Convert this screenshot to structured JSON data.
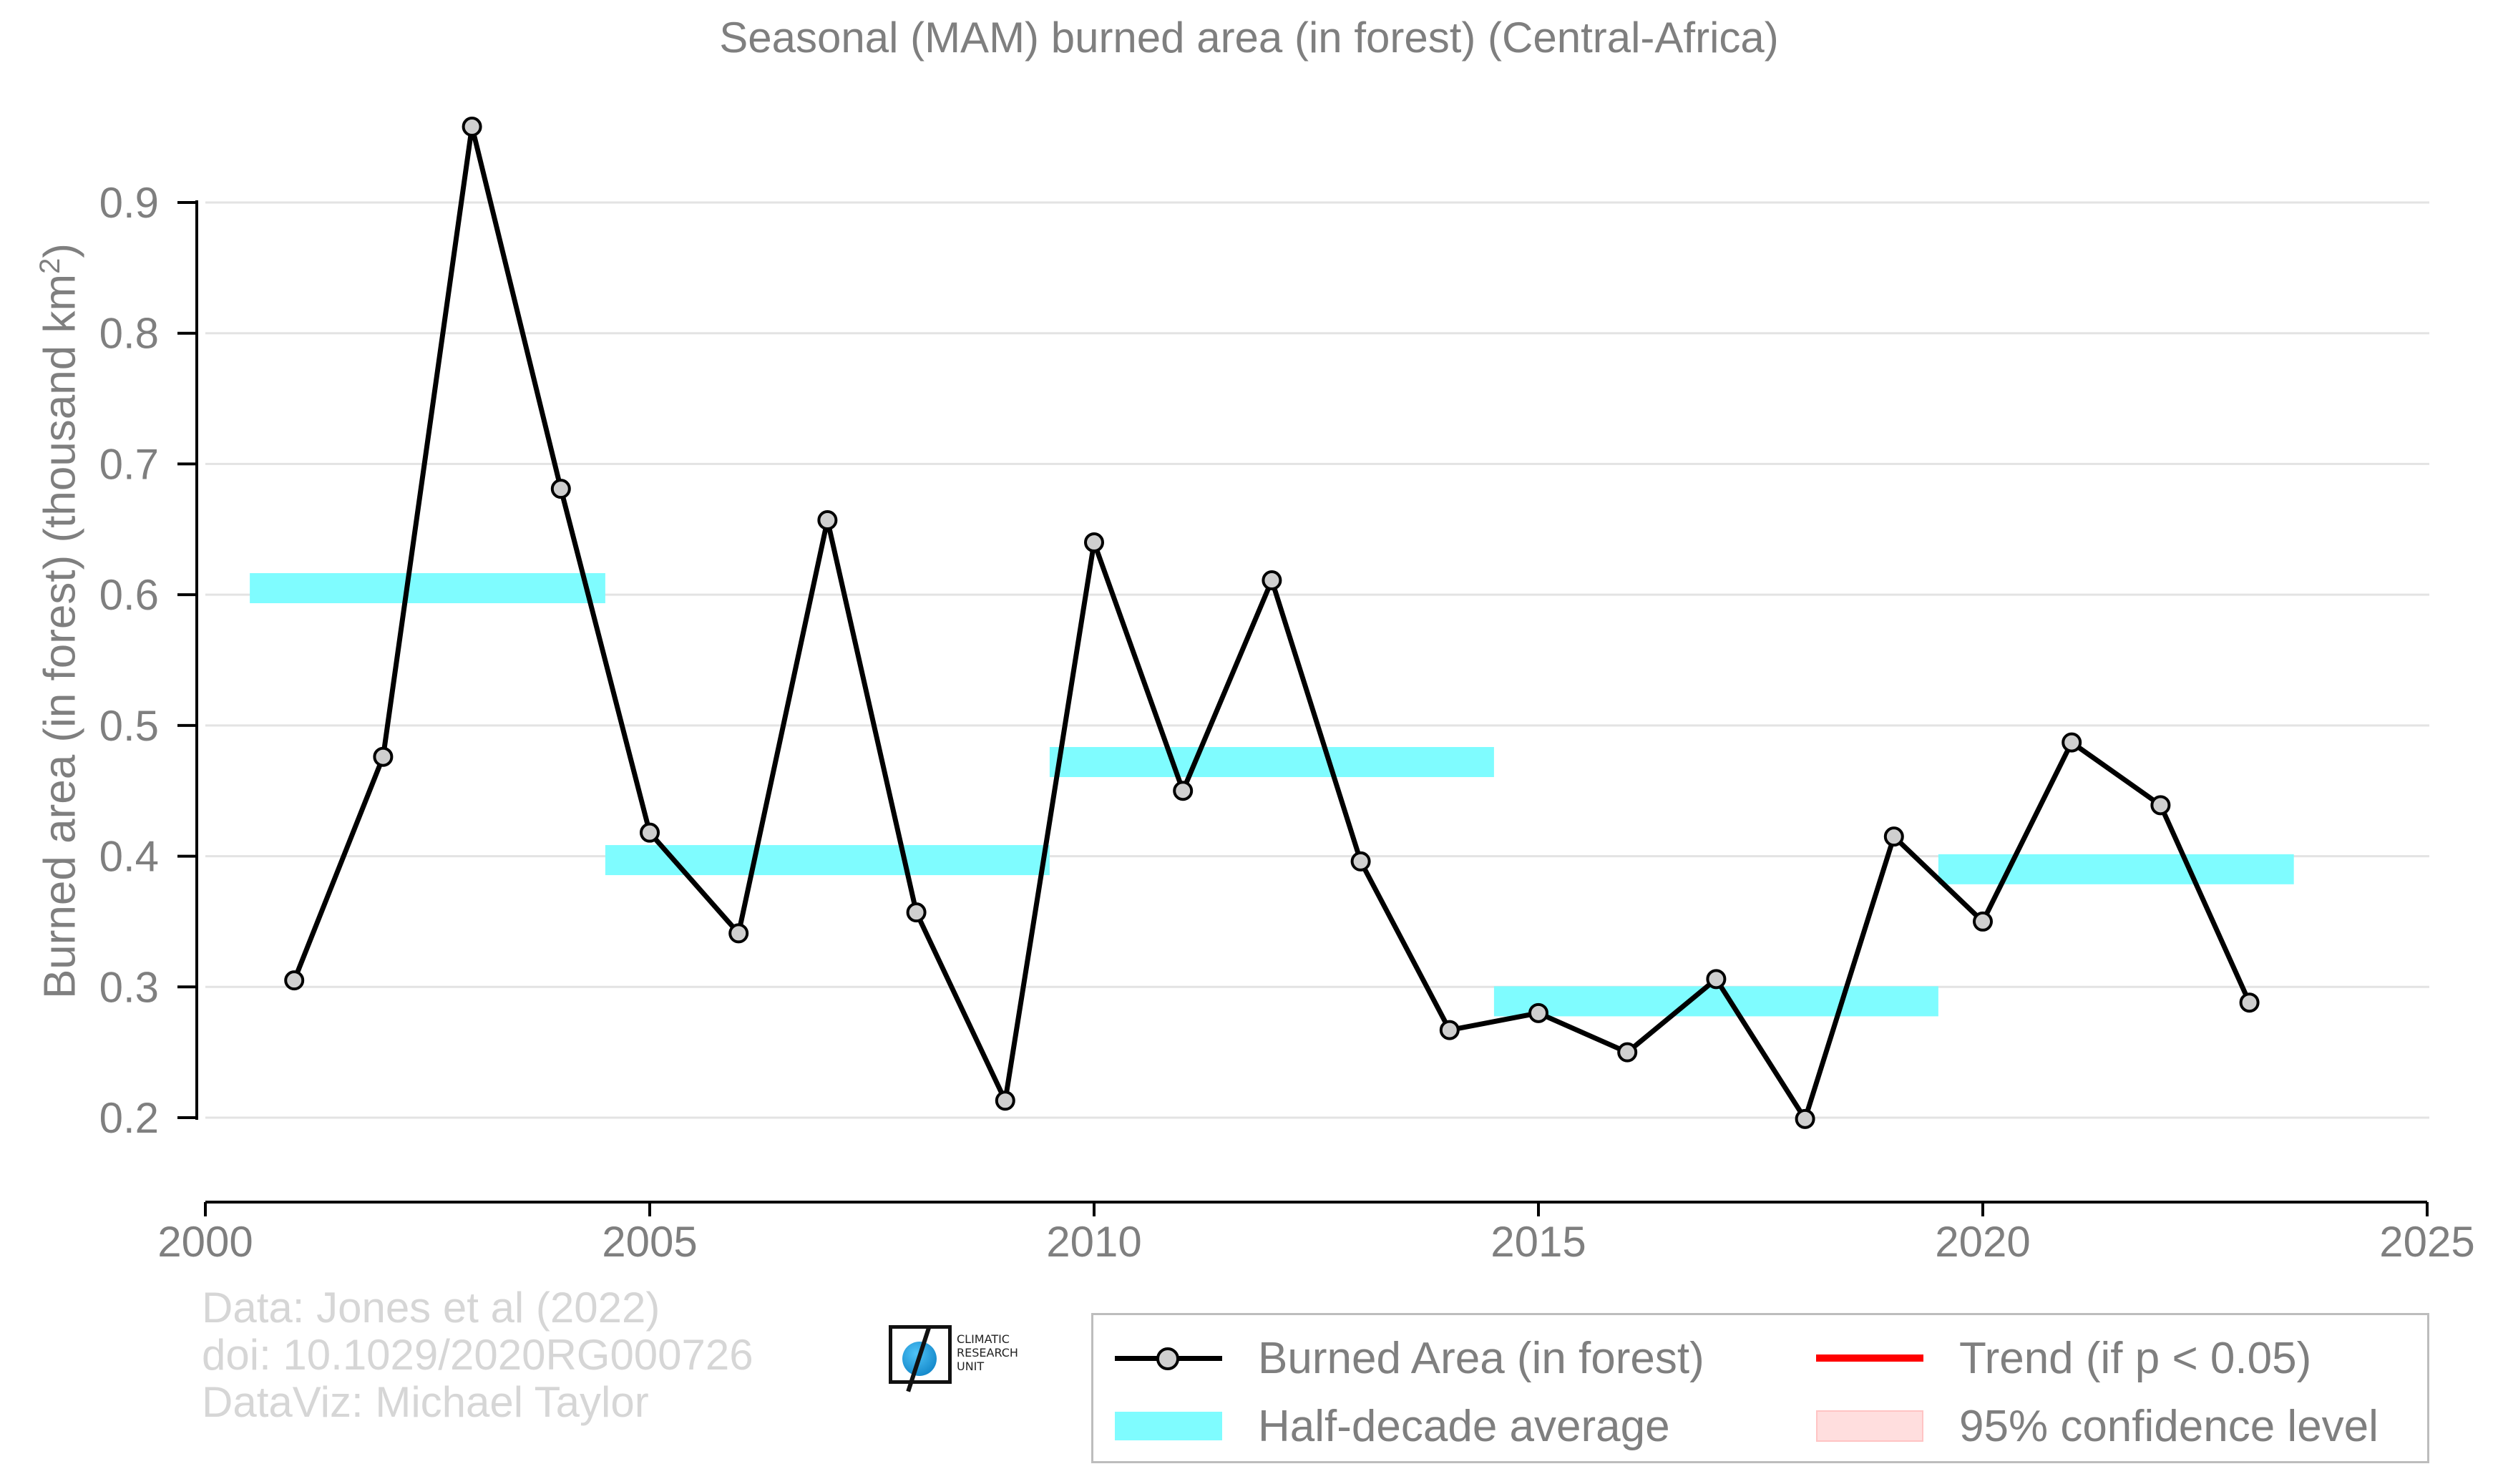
{
  "chart_data": {
    "type": "line",
    "title": "Seasonal (MAM) burned area (in forest) (Central-Africa)",
    "ylabel": "Burned area (in forest) (thousand km",
    "ylabel_sup": "2",
    "ylabel_close": ")",
    "xlabel": "",
    "xlim": [
      2000,
      2025
    ],
    "ylim": [
      0.14,
      0.95
    ],
    "x_ticks": [
      2000,
      2005,
      2010,
      2015,
      2020,
      2025
    ],
    "y_ticks": [
      0.2,
      0.3,
      0.4,
      0.5,
      0.6,
      0.7,
      0.8,
      0.9
    ],
    "y_tick_labels": [
      "0.2",
      "0.3",
      "0.4",
      "0.5",
      "0.6",
      "0.7",
      "0.8",
      "0.9"
    ],
    "grid": "horizontal",
    "series": [
      {
        "name": "Burned Area (in forest)",
        "color": "#000000",
        "marker_fill": "#cfcfcf",
        "x": [
          2001,
          2002,
          2003,
          2004,
          2005,
          2006,
          2007,
          2008,
          2009,
          2010,
          2011,
          2012,
          2013,
          2014,
          2015,
          2016,
          2017,
          2018,
          2019,
          2020,
          2021,
          2022,
          2023
        ],
        "y": [
          0.305,
          0.476,
          0.958,
          0.681,
          0.418,
          0.341,
          0.657,
          0.357,
          0.213,
          0.64,
          0.45,
          0.611,
          0.396,
          0.267,
          0.28,
          0.25,
          0.306,
          0.199,
          0.415,
          0.35,
          0.487,
          0.439,
          0.288
        ]
      }
    ],
    "half_decade_average": {
      "name": "Half-decade average",
      "color": "#7ffcff",
      "segments": [
        {
          "x_start": 2000.5,
          "x_end": 2004.5,
          "y": 0.605
        },
        {
          "x_start": 2004.5,
          "x_end": 2009.5,
          "y": 0.397
        },
        {
          "x_start": 2009.5,
          "x_end": 2014.5,
          "y": 0.472
        },
        {
          "x_start": 2014.5,
          "x_end": 2019.5,
          "y": 0.289
        },
        {
          "x_start": 2019.5,
          "x_end": 2023.5,
          "y": 0.39
        }
      ]
    },
    "legend": {
      "placement": "bottom-right",
      "items": [
        {
          "label": "Burned Area (in forest)",
          "kind": "line-marker"
        },
        {
          "label": "Trend (if p < 0.05)",
          "kind": "line",
          "color": "#ff0000"
        },
        {
          "label": "Half-decade average",
          "kind": "band",
          "color": "#7ffcff"
        },
        {
          "label": "95% confidence level",
          "kind": "band",
          "color": "#ffdede"
        }
      ]
    }
  },
  "credits": {
    "line1": "Data: Jones et al (2022)",
    "line2": "doi: 10.1029/2020RG000726",
    "line3": "DataViz: Michael Taylor"
  },
  "logo": {
    "lines": [
      "CLIMATIC",
      "RESEARCH",
      "UNIT"
    ]
  }
}
